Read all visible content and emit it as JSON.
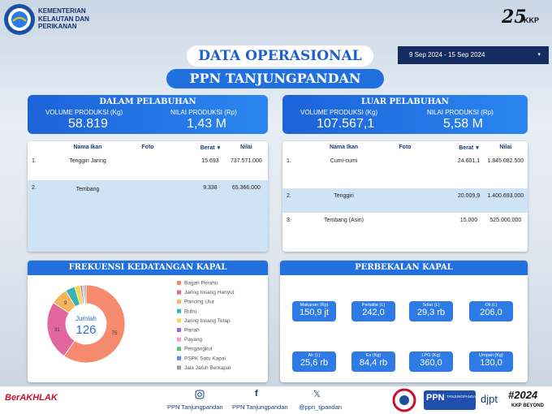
{
  "header": {
    "ministry": [
      "KEMENTERIAN",
      "KELAUTAN DAN",
      "PERIKANAN"
    ],
    "logo_right": "KKP",
    "title": "DATA OPERASIONAL",
    "subtitle": "PPN TANJUNGPANDAN",
    "date_range": "9 Sep 2024 - 15 Sep 2024"
  },
  "dalam": {
    "title": "DALAM PELABUHAN",
    "volume_label": "VOLUME PRODUKSI (Kg)",
    "volume": "58.819",
    "nilai_label": "NILAI PRODUKSI (Rp)",
    "nilai": "1,43 M",
    "table": {
      "columns": [
        "Nama Ikan",
        "Foto",
        "Berat",
        "Nilai"
      ],
      "rows": [
        [
          "1.",
          "Tenggiri Jaring",
          "15.693",
          "737.571.000"
        ],
        [
          "2.",
          "Tembang",
          "9.338",
          "65.366.000"
        ]
      ]
    }
  },
  "luar": {
    "title": "LUAR PELABUHAN",
    "volume_label": "VOLUME PRODUKSI (Kg)",
    "volume": "107.567,1",
    "nilai_label": "NILAI PRODUKSI (Rp)",
    "nilai": "5,58 M",
    "table": {
      "columns": [
        "Nama Ikan",
        "Foto",
        "Berat",
        "Nilai"
      ],
      "rows": [
        [
          "1.",
          "Cumi-cumi",
          "24.601,1",
          "1.845.082.500"
        ],
        [
          "2.",
          "Tenggiri",
          "20.009,9",
          "1.400.693.000"
        ],
        [
          "3.",
          "Tembang (Asin)",
          "15.000",
          "525.000.000"
        ]
      ]
    }
  },
  "frekuensi": {
    "type": "pie",
    "title": "FREKUENSI KEDATANGAN KAPAL",
    "total_label": "Jumlah",
    "total": 126,
    "series": [
      {
        "name": "Bagan Perahu",
        "color": "#f58a6e",
        "value": 75
      },
      {
        "name": "Jaring Insang Hanyut",
        "color": "#e2679f",
        "value": 31
      },
      {
        "name": "Pancing Ulur",
        "color": "#f4b55b",
        "value": 9
      },
      {
        "name": "Bubu",
        "color": "#3bb3b0",
        "value": 5
      },
      {
        "name": "Jaring Insang Tetap",
        "color": "#f3d94a",
        "value": 3
      },
      {
        "name": "Panah",
        "color": "#9a6ad1",
        "value": 1
      },
      {
        "name": "Payang",
        "color": "#f79bc4",
        "value": 1
      },
      {
        "name": "Pengangkut",
        "color": "#6cc070",
        "value": 1
      },
      {
        "name": "PSPK Satu Kapal",
        "color": "#5b8ee6",
        "value": 0
      },
      {
        "name": "Jala Jatuh Berkapal",
        "color": "#9aa0a8",
        "value": 0
      }
    ]
  },
  "perbekalan": {
    "title": "PERBEKALAN KAPAL",
    "items": [
      {
        "label": "Makanan (Rp)",
        "value": "150,9 jt"
      },
      {
        "label": "Pertalite (L)",
        "value": "242,0"
      },
      {
        "label": "Solar (L)",
        "value": "29,3 rb"
      },
      {
        "label": "Oli (L)",
        "value": "206,0"
      },
      {
        "label": "Air (L)",
        "value": "25,6 rb"
      },
      {
        "label": "Es (Kg)",
        "value": "84,4 rb"
      },
      {
        "label": "LPG (Kg)",
        "value": "360,0"
      },
      {
        "label": "Umpan (Kg)",
        "value": "130,0"
      }
    ]
  },
  "footer": {
    "brand": "BerAKHLAK",
    "instagram": "PPN Tanjungpandan",
    "facebook": "PPN Tanjungpandan",
    "x": "@ppn_tjpandan",
    "ppn": "PPN",
    "ppn_name": "TANJUNGPANDAN",
    "djpt": "djpt",
    "tagline": "#2024",
    "kkp": "KKP BEYOND"
  }
}
